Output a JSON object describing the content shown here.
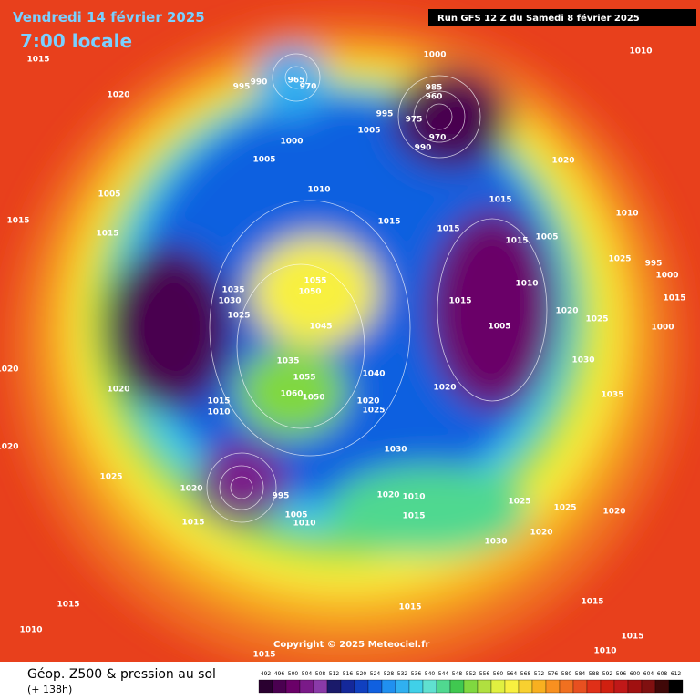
{
  "header": {
    "date": "Vendredi 14 février 2025",
    "time": "7:00 locale",
    "run": "Run GFS 12 Z du Samedi 8 février 2025"
  },
  "copyright": "Copyright © 2025 Meteociel.fr",
  "legend": {
    "title": "Géop. Z500 & pression au sol",
    "subtitle": "(+ 138h)",
    "levels": [
      492,
      496,
      500,
      504,
      508,
      512,
      516,
      520,
      524,
      528,
      532,
      536,
      540,
      544,
      548,
      552,
      556,
      560,
      564,
      568,
      572,
      576,
      580,
      584,
      588,
      592,
      596,
      600,
      604,
      608,
      612
    ],
    "colors": [
      "#2a0030",
      "#4a0050",
      "#6a0068",
      "#7a1a88",
      "#8a3aa8",
      "#1a1a6a",
      "#14289a",
      "#1040c0",
      "#1060e0",
      "#2090f0",
      "#30b0f0",
      "#40d0e8",
      "#60e0d0",
      "#50d890",
      "#40c850",
      "#80d840",
      "#b0e040",
      "#e0f040",
      "#f8f040",
      "#f8d030",
      "#f8b020",
      "#f89020",
      "#f07020",
      "#e85020",
      "#e03018",
      "#d02010",
      "#c01818",
      "#a01010",
      "#801010",
      "#400808",
      "#000000"
    ]
  },
  "isobar_labels": [
    "1015",
    "1020",
    "995",
    "990",
    "965",
    "970",
    "1000",
    "1005",
    "1010",
    "1005",
    "1015",
    "1015",
    "1035",
    "1030",
    "1025",
    "1055",
    "1050",
    "1045",
    "1035",
    "1055",
    "1060",
    "1050",
    "1040",
    "1020",
    "1025",
    "1015",
    "1010",
    "1020",
    "1025",
    "1020",
    "995",
    "1015",
    "1005",
    "1010",
    "1015",
    "1010",
    "1015",
    "1030",
    "1020",
    "1010",
    "1015",
    "1030",
    "1020",
    "1025",
    "1025",
    "1020",
    "1015",
    "1015",
    "1015",
    "1010",
    "1000",
    "985",
    "960",
    "975",
    "970",
    "990",
    "995",
    "1005",
    "1015",
    "1015",
    "1015",
    "1015",
    "1005",
    "1010",
    "1015",
    "1005",
    "1020",
    "1025",
    "1030",
    "1035",
    "1020",
    "1020",
    "1010",
    "1010",
    "1025",
    "995",
    "1000",
    "1000",
    "1015",
    "1020",
    "1020"
  ]
}
